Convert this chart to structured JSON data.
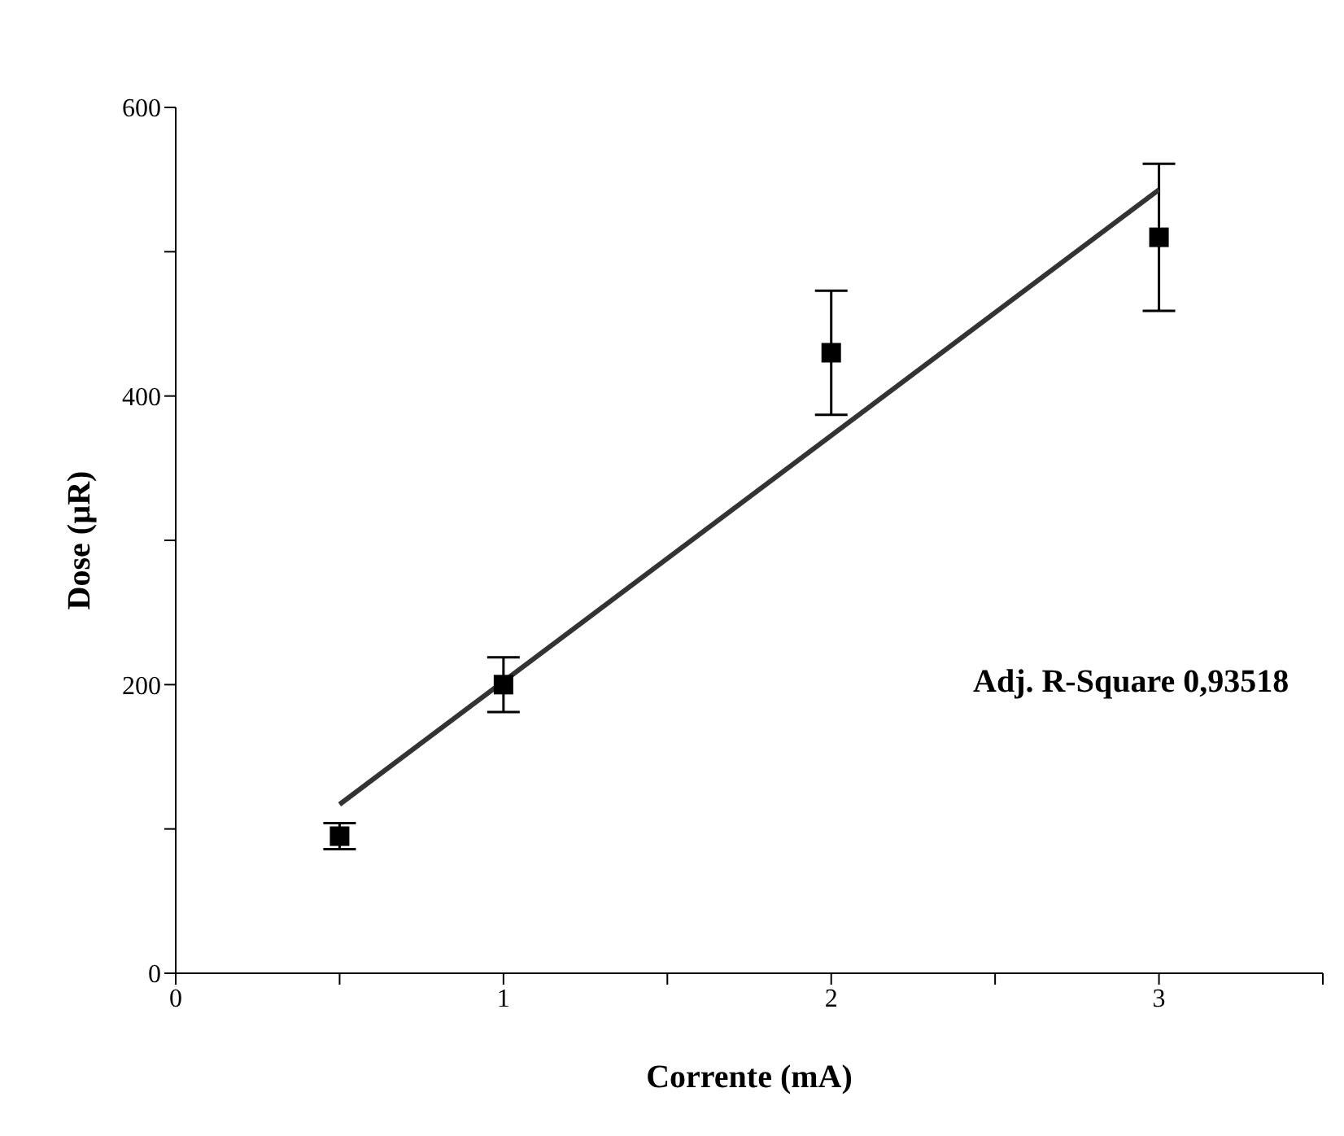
{
  "chart_data": {
    "type": "scatter",
    "xlabel": "Corrente (mA)",
    "ylabel": "Dose (µR)",
    "xlim": [
      0,
      3.5
    ],
    "xticks": [
      0,
      {
        "value": 0.5,
        "label": null
      },
      1,
      {
        "value": 1.5,
        "label": null
      },
      2,
      {
        "value": 2.5,
        "label": null
      },
      3,
      {
        "value": 3.5,
        "label": null
      }
    ],
    "ylim": [
      0,
      600
    ],
    "yticks": [
      0,
      {
        "value": 100,
        "label": null
      },
      200,
      {
        "value": 300,
        "label": null
      },
      400,
      {
        "value": 500,
        "label": null
      },
      600
    ],
    "grid": false,
    "legend": false,
    "series": [
      {
        "color": "#000000",
        "marker": "square",
        "x": [
          0.5,
          1,
          2,
          3
        ],
        "values": [
          95,
          200,
          430,
          510
        ],
        "errors": [
          9,
          19,
          43,
          51
        ]
      },
      {
        "type": "line",
        "color": "#333333",
        "marker": "none",
        "line_style": "solid",
        "x": [
          0.5,
          3
        ],
        "values": [
          117,
          543
        ]
      }
    ],
    "annotations": [
      "Adj. R-Square 0,93518"
    ]
  }
}
